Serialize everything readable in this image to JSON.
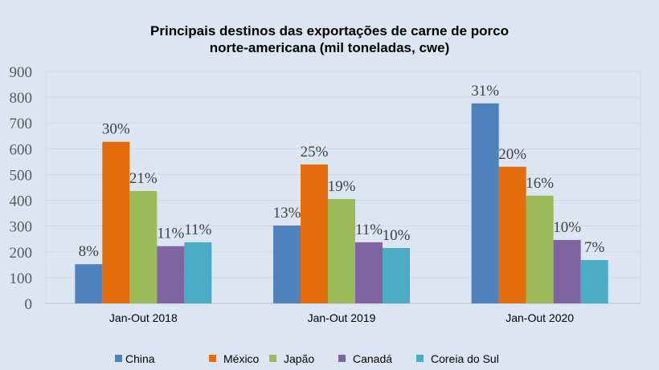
{
  "chart_data": {
    "type": "bar",
    "title": "Principais destinos das exportações de carne de porco norte-americana (mil toneladas, cwe)",
    "title_lines": [
      "Principais destinos das exportações de carne de porco",
      "norte-americana (mil toneladas, cwe)"
    ],
    "categories": [
      "Jan-Out 2018",
      "Jan-Out 2019",
      "Jan-Out 2020"
    ],
    "ylim": [
      0,
      900
    ],
    "yticks": [
      0,
      100,
      200,
      300,
      400,
      500,
      600,
      700,
      800,
      900
    ],
    "grid": true,
    "legend_position": "bottom",
    "series": [
      {
        "name": "China",
        "color": "#4f81bd",
        "values": [
          152,
          302,
          776
        ],
        "labels": [
          "8%",
          "13%",
          "31%"
        ]
      },
      {
        "name": "México",
        "color": "#e46c0a",
        "values": [
          627,
          539,
          530
        ],
        "labels": [
          "30%",
          "25%",
          "20%"
        ]
      },
      {
        "name": "Japão",
        "color": "#9bbb59",
        "values": [
          436,
          405,
          418
        ],
        "labels": [
          "21%",
          "19%",
          "16%"
        ]
      },
      {
        "name": "Canadá",
        "color": "#8064a2",
        "values": [
          222,
          237,
          246
        ],
        "labels": [
          "11%",
          "11%",
          "10%"
        ]
      },
      {
        "name": "Coreia do Sul",
        "color": "#4bacc6",
        "values": [
          237,
          215,
          168
        ],
        "labels": [
          "11%",
          "10%",
          "7%"
        ]
      }
    ]
  }
}
